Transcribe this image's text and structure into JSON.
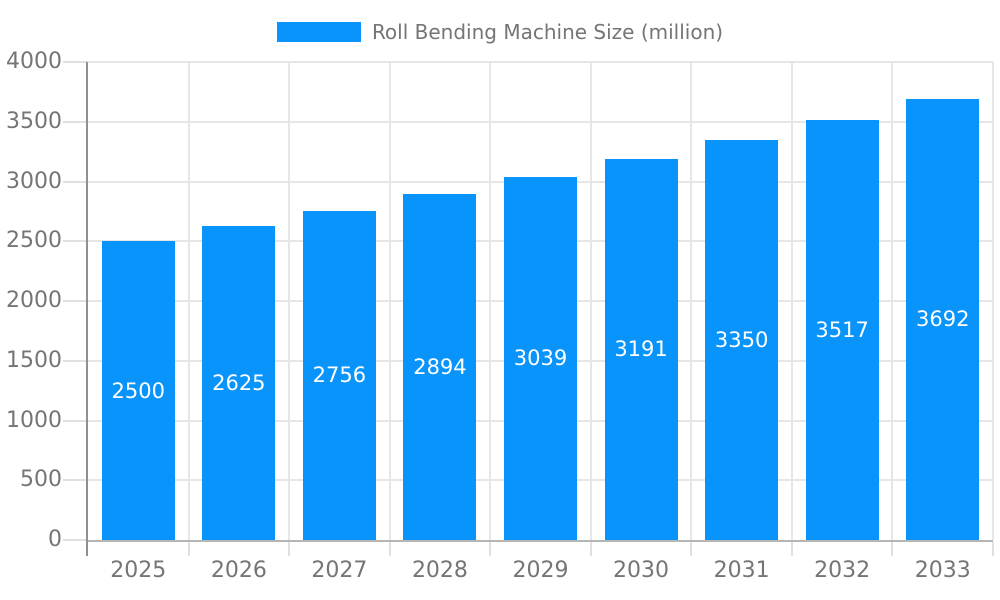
{
  "legend": {
    "label": "Roll Bending Machine Size (million)"
  },
  "chart_data": {
    "type": "bar",
    "title": "Roll Bending Machine Size (million)",
    "categories": [
      "2025",
      "2026",
      "2027",
      "2028",
      "2029",
      "2030",
      "2031",
      "2032",
      "2033"
    ],
    "values": [
      2500,
      2625,
      2756,
      2894,
      3039,
      3191,
      3350,
      3517,
      3692
    ],
    "series": [
      {
        "name": "Roll Bending Machine Size (million)",
        "values": [
          2500,
          2625,
          2756,
          2894,
          3039,
          3191,
          3350,
          3517,
          3692
        ]
      }
    ],
    "xlabel": "",
    "ylabel": "",
    "ylim": [
      0,
      4000
    ],
    "yticks": [
      0,
      500,
      1000,
      1500,
      2000,
      2500,
      3000,
      3500,
      4000
    ],
    "grid": true,
    "legend_position": "top-center",
    "value_labels": "inside-center-white",
    "colors": {
      "bar": "#0994fb",
      "value_label": "#ffffff",
      "axis_text": "#757575",
      "gridline": "#e6e6e6",
      "y_axis_line": "#8f8f8f",
      "x_axis_line": "#b5b5b5",
      "tick": "#e0e0e0",
      "background": "#ffffff"
    }
  }
}
